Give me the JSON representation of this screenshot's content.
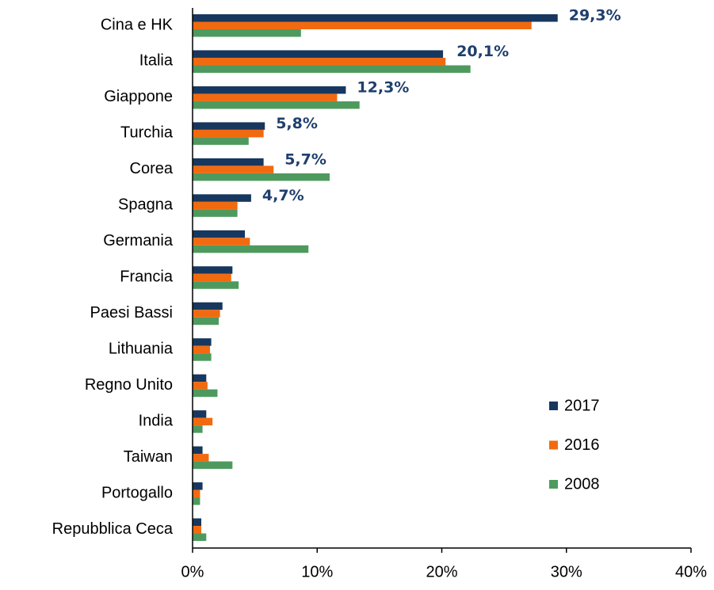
{
  "chart_data": {
    "type": "bar",
    "orientation": "horizontal",
    "categories": [
      "Cina e HK",
      "Italia",
      "Giappone",
      "Turchia",
      "Corea",
      "Spagna",
      "Germania",
      "Francia",
      "Paesi Bassi",
      "Lithuania",
      "Regno Unito",
      "India",
      "Taiwan",
      "Portogallo",
      "Repubblica Ceca"
    ],
    "series": [
      {
        "name": "2017",
        "color": "#17375e",
        "values": [
          29.3,
          20.1,
          12.3,
          5.8,
          5.7,
          4.7,
          4.2,
          3.2,
          2.4,
          1.5,
          1.1,
          1.1,
          0.8,
          0.8,
          0.7
        ],
        "value_labels": [
          "29,3%",
          "20,1%",
          "12,3%",
          "5,8%",
          "5,7%",
          "4,7%",
          null,
          null,
          null,
          null,
          null,
          null,
          null,
          null,
          null
        ]
      },
      {
        "name": "2016",
        "color": "#f26a0f",
        "values": [
          27.2,
          20.3,
          11.6,
          5.7,
          6.5,
          3.6,
          4.6,
          3.1,
          2.2,
          1.4,
          1.2,
          1.6,
          1.3,
          0.6,
          0.7
        ]
      },
      {
        "name": "2008",
        "color": "#4e9a5e",
        "values": [
          8.7,
          22.3,
          13.4,
          4.5,
          11.0,
          3.6,
          9.3,
          3.7,
          2.1,
          1.5,
          2.0,
          0.8,
          3.2,
          0.6,
          1.1
        ]
      }
    ],
    "xlim": [
      0,
      40
    ],
    "xticks": [
      {
        "value": 0,
        "label": "0%"
      },
      {
        "value": 10,
        "label": "10%"
      },
      {
        "value": 20,
        "label": "20%"
      },
      {
        "value": 30,
        "label": "30%"
      },
      {
        "value": 40,
        "label": "40%"
      }
    ],
    "legend": "lower right"
  }
}
